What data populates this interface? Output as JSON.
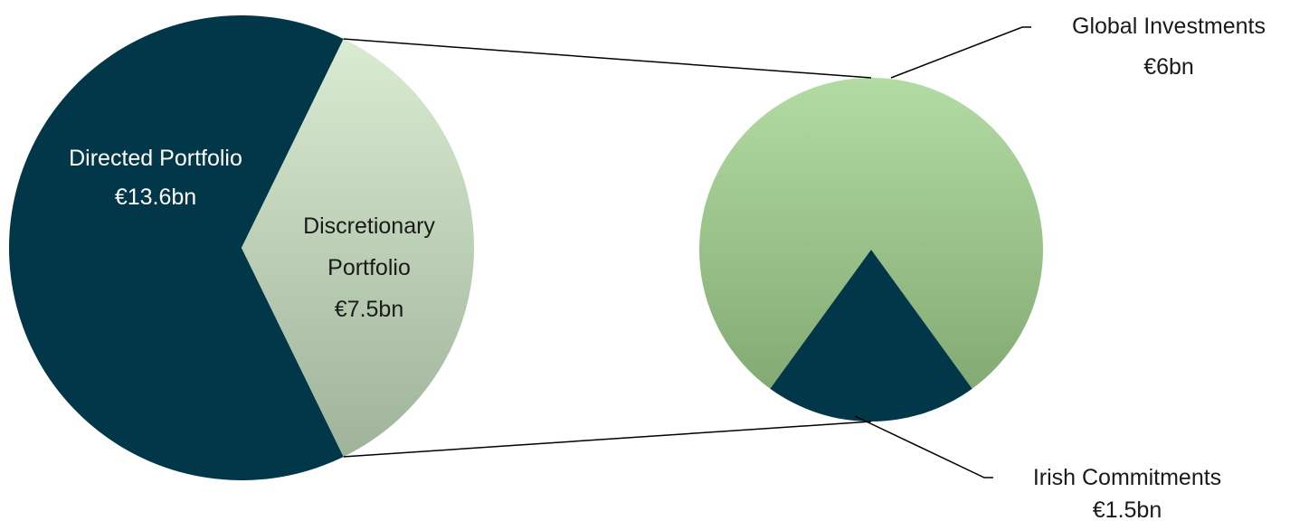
{
  "chart_data": [
    {
      "type": "pie",
      "slices": [
        {
          "label": "Directed Portfolio",
          "value": 13.6,
          "display": "€13.6bn",
          "color": "#023749"
        },
        {
          "label": "Discretionary Portfolio",
          "value": 7.5,
          "display": "€7.5bn",
          "color": "#cfe3c8"
        }
      ],
      "unit": "€bn",
      "exploded_slice": "Discretionary Portfolio"
    },
    {
      "type": "pie",
      "slices": [
        {
          "label": "Global Investments",
          "value": 6,
          "display": "€6bn",
          "color": "#9fcb8c"
        },
        {
          "label": "Irish Commitments",
          "value": 1.5,
          "display": "€1.5bn",
          "color": "#023749"
        }
      ],
      "unit": "€bn",
      "breakdown_of": "Discretionary Portfolio"
    }
  ],
  "labels": {
    "directed_name": "Directed Portfolio",
    "directed_value": "€13.6bn",
    "discretionary_line1": "Discretionary",
    "discretionary_line2": "Portfolio",
    "discretionary_value": "€7.5bn",
    "global_name": "Global Investments",
    "global_value": "€6bn",
    "irish_name": "Irish Commitments",
    "irish_value": "€1.5bn"
  },
  "colors": {
    "dark_navy": "#023749",
    "light_green": "#cfe3c8",
    "mid_green": "#9fcb8c",
    "connector": "#000000"
  }
}
